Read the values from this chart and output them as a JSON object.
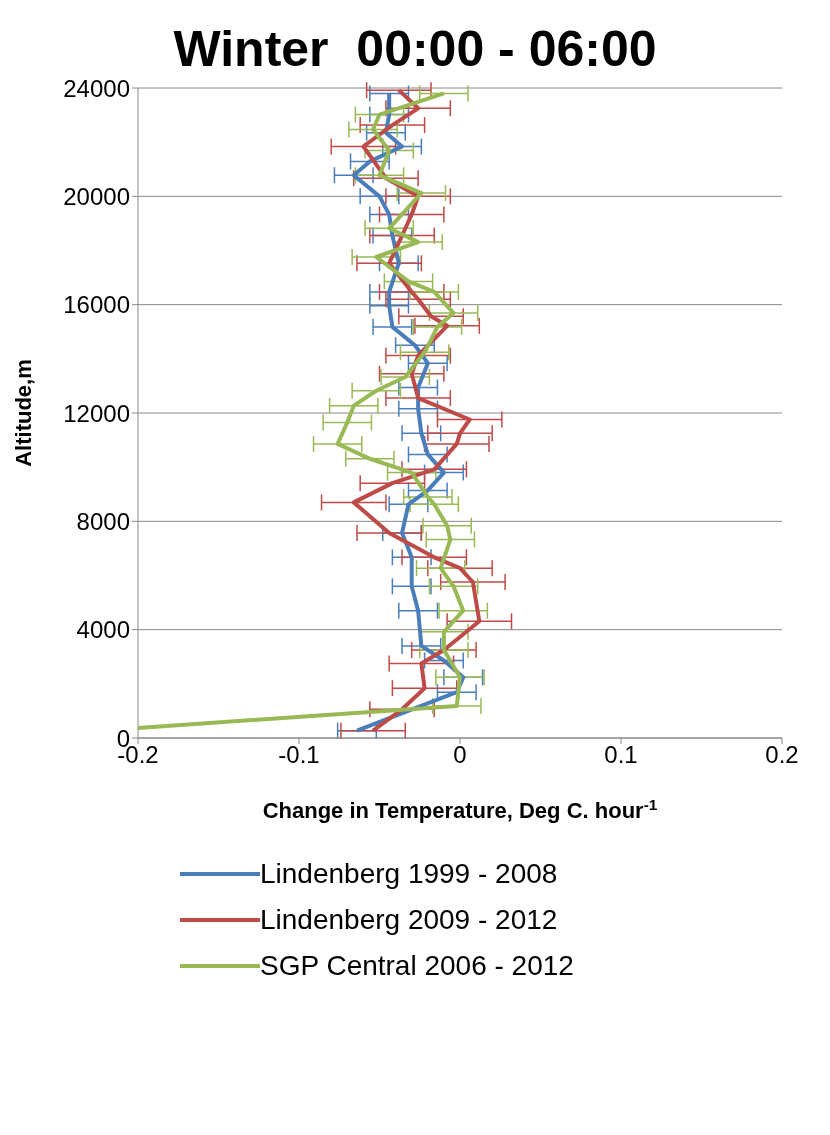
{
  "chart_data": {
    "type": "line",
    "title": "Winter  00:00 - 06:00",
    "xlabel": "Change in Temperature, Deg C. hour$^{-1}$",
    "ylabel": "Altitude,m",
    "xlim": [
      -0.2,
      0.2
    ],
    "xticks": [
      -0.2,
      -0.1,
      0,
      0.1,
      0.2
    ],
    "ylim": [
      0,
      24000
    ],
    "yticks": [
      0,
      4000,
      8000,
      12000,
      16000,
      20000,
      24000
    ],
    "grid": "y",
    "legend": "bottom",
    "marker": "none",
    "series": [
      {
        "name": "Lindenberg 1999 - 2008",
        "color": "#4a7ebb",
        "x": [
          -0.064,
          -0.002,
          0.002,
          -0.01,
          -0.024,
          -0.026,
          -0.03,
          -0.03,
          -0.036,
          -0.032,
          -0.02,
          -0.01,
          -0.02,
          -0.024,
          -0.026,
          -0.026,
          -0.02,
          -0.028,
          -0.042,
          -0.044,
          -0.044,
          -0.038,
          -0.042,
          -0.044,
          -0.05,
          -0.066,
          -0.056,
          -0.036,
          -0.046,
          -0.044,
          -0.044
        ],
        "values": [
          270,
          1690,
          2240,
          2860,
          3400,
          4700,
          5600,
          6670,
          7570,
          8630,
          9140,
          9800,
          10470,
          11250,
          12160,
          12940,
          13840,
          14500,
          15180,
          15960,
          16470,
          17530,
          18550,
          19330,
          20000,
          20780,
          21290,
          21840,
          22350,
          23020,
          23800
        ],
        "xerrors": [
          0.012,
          0.012,
          0.012,
          0.012,
          0.012,
          0.012,
          0.012,
          0.012,
          0.012,
          0.012,
          0.012,
          0.012,
          0.012,
          0.012,
          0.012,
          0.012,
          0.012,
          0.012,
          0.012,
          0.012,
          0.012,
          0.012,
          0.012,
          0.012,
          0.012,
          0.012,
          0.012,
          0.012,
          0.012,
          0.012,
          0.012
        ]
      },
      {
        "name": "Lindenberg 2009 - 2012",
        "color": "#be4b48",
        "x": [
          -0.054,
          -0.036,
          -0.022,
          -0.024,
          -0.01,
          0.012,
          0.008,
          0.0,
          -0.016,
          -0.044,
          -0.066,
          -0.042,
          -0.016,
          -0.002,
          0.0,
          0.006,
          -0.026,
          -0.03,
          -0.026,
          -0.008,
          -0.018,
          -0.026,
          -0.03,
          -0.044,
          -0.036,
          -0.03,
          -0.026,
          -0.046,
          -0.06,
          -0.042,
          -0.026,
          -0.038
        ],
        "values": [
          270,
          1060,
          1840,
          2750,
          3250,
          4310,
          5760,
          6270,
          6670,
          7570,
          8700,
          9410,
          9920,
          10860,
          11250,
          11760,
          12550,
          13450,
          14120,
          15220,
          15570,
          16200,
          16470,
          17530,
          18550,
          19330,
          20000,
          20670,
          21840,
          22630,
          23250,
          23920
        ],
        "xerrors": [
          0.02,
          0.02,
          0.02,
          0.02,
          0.02,
          0.02,
          0.02,
          0.02,
          0.02,
          0.02,
          0.02,
          0.02,
          0.02,
          0.02,
          0.02,
          0.02,
          0.02,
          0.02,
          0.02,
          0.02,
          0.02,
          0.02,
          0.02,
          0.02,
          0.02,
          0.02,
          0.02,
          0.02,
          0.02,
          0.02,
          0.02,
          0.02
        ]
      },
      {
        "name": "SGP Central 2006 - 2012",
        "color": "#98b954",
        "x": [
          -0.2,
          -0.002,
          0.0,
          -0.01,
          -0.01,
          0.002,
          -0.004,
          -0.012,
          -0.006,
          -0.008,
          -0.016,
          -0.02,
          -0.03,
          -0.056,
          -0.076,
          -0.07,
          -0.066,
          -0.052,
          -0.034,
          -0.022,
          -0.014,
          -0.004,
          -0.016,
          -0.032,
          -0.052,
          -0.026,
          -0.044,
          -0.024,
          -0.05,
          -0.044,
          -0.054,
          -0.05,
          -0.01
        ],
        "values": [
          370,
          1180,
          2240,
          3250,
          3920,
          4700,
          5600,
          6270,
          7330,
          7840,
          8630,
          8900,
          9800,
          10310,
          10860,
          11650,
          12270,
          12820,
          13330,
          14240,
          15180,
          15690,
          16470,
          16860,
          17760,
          18310,
          18820,
          20120,
          20780,
          21690,
          22470,
          23020,
          23800
        ],
        "xerrors": [
          null,
          0.015,
          0.015,
          0.015,
          0.015,
          0.015,
          0.015,
          0.015,
          0.015,
          0.015,
          0.015,
          0.015,
          0.015,
          0.015,
          0.015,
          0.015,
          0.015,
          0.015,
          0.015,
          0.015,
          0.015,
          0.015,
          0.015,
          0.015,
          0.015,
          0.015,
          0.015,
          0.015,
          0.015,
          0.015,
          0.015,
          0.015,
          0.015
        ]
      }
    ]
  }
}
